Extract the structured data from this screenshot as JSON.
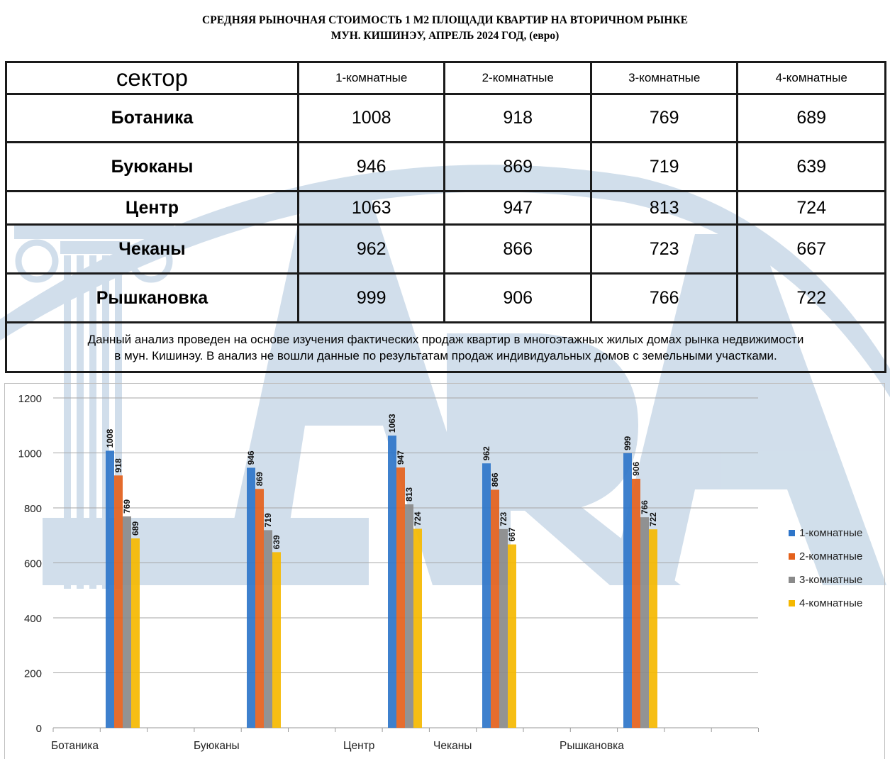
{
  "title": {
    "line1": "СРЕДНЯЯ  РЫНОЧНАЯ  СТОИМОСТЬ  1 М2  ПЛОЩАДИ  КВАРТИР НА ВТОРИЧНОМ РЫНКЕ",
    "line2": "МУН.  КИШИНЭУ, АПРЕЛЬ 2024 ГОД, (евро)"
  },
  "table": {
    "header_sector": "сектор",
    "columns": [
      "1-комнатные",
      "2-комнатные",
      "3-комнатные",
      "4-комнатные"
    ],
    "rows": [
      {
        "sector": "Ботаника",
        "values": [
          "1008",
          "918",
          "769",
          "689"
        ]
      },
      {
        "sector": "Буюканы",
        "values": [
          "946",
          "869",
          "719",
          "639"
        ]
      },
      {
        "sector": "Центр",
        "values": [
          "1063",
          "947",
          "813",
          "724"
        ]
      },
      {
        "sector": "Чеканы",
        "values": [
          "962",
          "866",
          "723",
          "667"
        ]
      },
      {
        "sector": "Рышкановка",
        "values": [
          "999",
          "906",
          "766",
          "722"
        ]
      }
    ],
    "note_line1": "Данный анализ проведен на основе изучения фактических продаж квартир в многоэтажных жилых домах рынка недвижимости",
    "note_line2": "в мун. Кишинэу. В анализ не вошли данные по результатам  продаж индивидуальных домов с земельными участками."
  },
  "watermark": {
    "text": "LARA",
    "color": "#c9d9e8"
  },
  "chart_data": {
    "type": "bar",
    "categories": [
      "Ботаника",
      "Буюканы",
      "Центр",
      "Чеканы",
      "Рышкановка"
    ],
    "series": [
      {
        "name": "1-комнатные",
        "color": "#2e75c9",
        "values": [
          1008,
          946,
          1063,
          962,
          999
        ]
      },
      {
        "name": "2-комнатные",
        "color": "#e4611c",
        "values": [
          918,
          869,
          947,
          866,
          906
        ]
      },
      {
        "name": "3-комнатные",
        "color": "#8a8a8a",
        "values": [
          769,
          719,
          813,
          723,
          766
        ]
      },
      {
        "name": "4-комнатные",
        "color": "#f5b800",
        "values": [
          689,
          639,
          724,
          667,
          722
        ]
      }
    ],
    "ylim": [
      0,
      1200
    ],
    "yticks": [
      0,
      200,
      400,
      600,
      800,
      1000,
      1200
    ],
    "grid": true,
    "legend": "right",
    "data_labels": true
  }
}
